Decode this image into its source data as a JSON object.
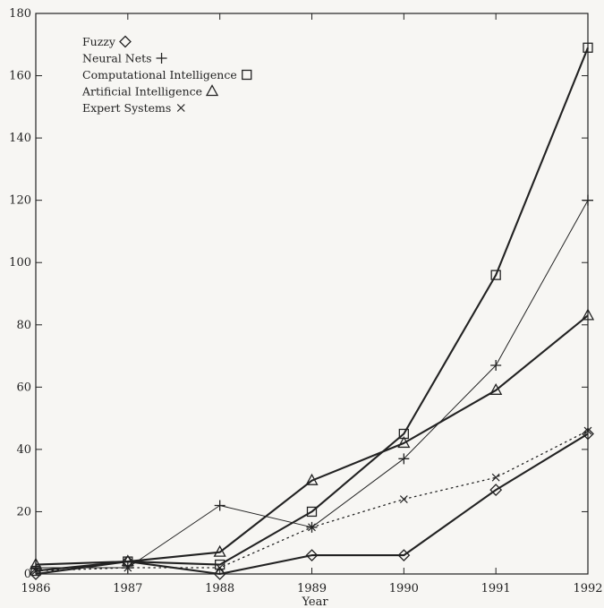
{
  "chart_data": {
    "type": "line",
    "title": "",
    "xlabel": "Year",
    "ylabel": "",
    "x": [
      1986,
      1987,
      1988,
      1989,
      1990,
      1991,
      1992
    ],
    "xlim": [
      1986,
      1992
    ],
    "ylim": [
      0,
      180
    ],
    "xticks": [
      "1986",
      "1987",
      "1988",
      "1989",
      "1990",
      "1991",
      "1992"
    ],
    "yticks": [
      "0",
      "20",
      "40",
      "60",
      "80",
      "100",
      "120",
      "140",
      "160",
      "180"
    ],
    "grid": false,
    "legend_position": "top-left",
    "series": [
      {
        "name": "Fuzzy",
        "marker": "diamond",
        "line": "thick",
        "values": [
          0,
          4,
          0,
          6,
          6,
          27,
          45
        ]
      },
      {
        "name": "Neural Nets",
        "marker": "plus",
        "line": "thin",
        "values": [
          2,
          2,
          22,
          15,
          37,
          67,
          120
        ]
      },
      {
        "name": "Computational Intelligence",
        "marker": "square",
        "line": "thick",
        "values": [
          1,
          4,
          3,
          20,
          45,
          96,
          169
        ]
      },
      {
        "name": "Artificial Intelligence",
        "marker": "triangle",
        "line": "thick",
        "values": [
          3,
          4,
          7,
          30,
          42,
          59,
          83
        ]
      },
      {
        "name": "Expert Systems",
        "marker": "cross",
        "line": "dotted",
        "values": [
          1,
          2,
          2,
          15,
          24,
          31,
          46
        ]
      }
    ]
  },
  "colors": {
    "ink": "#222222",
    "paper": "#f7f6f3"
  }
}
